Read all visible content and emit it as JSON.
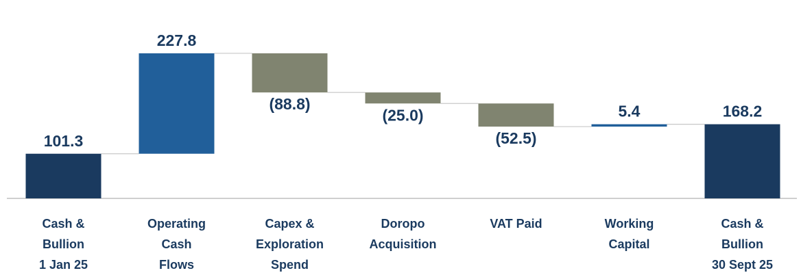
{
  "chart_data": {
    "type": "waterfall",
    "categories": [
      [
        "Cash &",
        "Bullion",
        "1 Jan 25"
      ],
      [
        "Operating",
        "Cash",
        "Flows"
      ],
      [
        "Capex &",
        "Exploration",
        "Spend"
      ],
      [
        "Doropo",
        "Acquisition"
      ],
      [
        "VAT Paid"
      ],
      [
        "Working",
        "Capital"
      ],
      [
        "Cash &",
        "Bullion",
        "30 Sept 25"
      ]
    ],
    "values": [
      101.3,
      227.8,
      -88.8,
      -25.0,
      -52.5,
      5.4,
      168.2
    ],
    "value_labels": [
      "101.3",
      "227.8",
      "(88.8)",
      "(25.0)",
      "(52.5)",
      "5.4",
      "168.2"
    ],
    "colors": [
      "#1a3a5f",
      "#215f9a",
      "#808470",
      "#808470",
      "#808470",
      "#215f9a",
      "#1a3a5f"
    ],
    "totals": [
      0,
      6
    ],
    "ylim": [
      0,
      450
    ]
  }
}
